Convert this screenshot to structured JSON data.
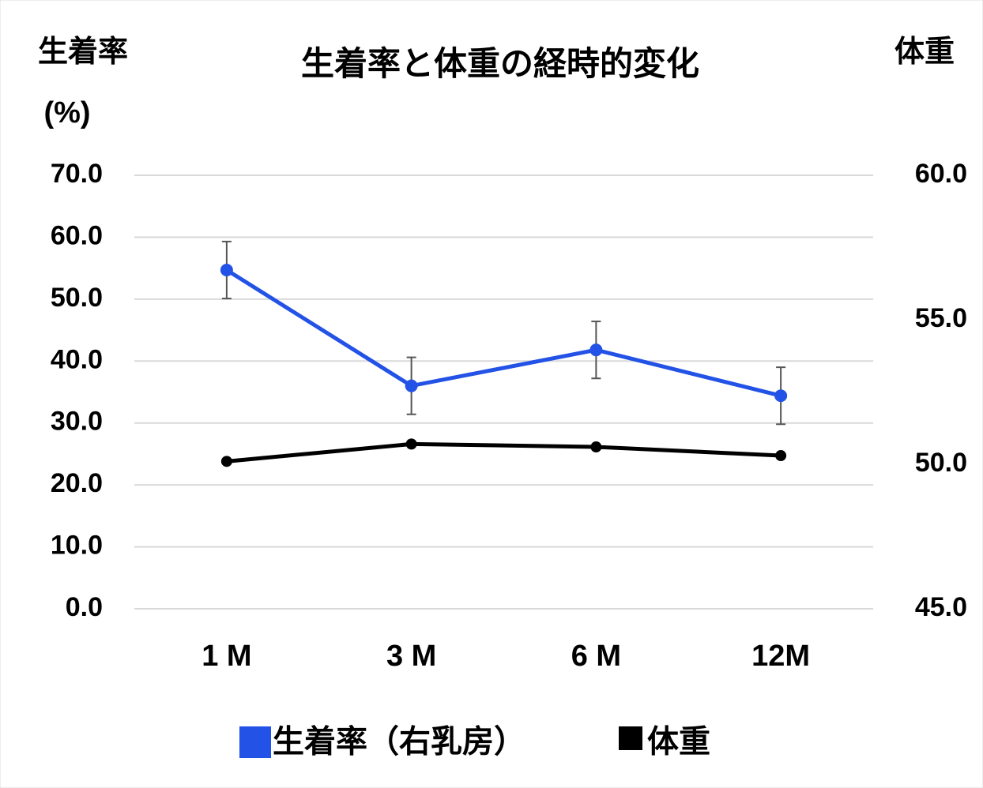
{
  "chart_data": {
    "type": "line",
    "title": "生着率と体重の経時的変化",
    "y_label": "生着率",
    "y_unit": "(%)",
    "y2_label": "体重",
    "categories": [
      "1 M",
      "3 M",
      "6 M",
      "12M"
    ],
    "series": [
      {
        "name": "生着率（右乳房）",
        "color": "#2352e6",
        "values": [
          54.7,
          36.0,
          41.8,
          34.4
        ],
        "errors": [
          4.6,
          4.6,
          4.6,
          4.6
        ]
      },
      {
        "name": "体重",
        "color": "#000000",
        "axis": "y2",
        "values": [
          50.1,
          50.7,
          50.6,
          50.3
        ]
      }
    ],
    "ylim": [
      0,
      70
    ],
    "yticks": [
      {
        "value": 0,
        "label": "0.0"
      },
      {
        "value": 10,
        "label": "10.0"
      },
      {
        "value": 20,
        "label": "20.0"
      },
      {
        "value": 30,
        "label": "30.0"
      },
      {
        "value": 40,
        "label": "40.0"
      },
      {
        "value": 50,
        "label": "50.0"
      },
      {
        "value": 60,
        "label": "60.0"
      },
      {
        "value": 70,
        "label": "70.0"
      }
    ],
    "y2lim": [
      45,
      60
    ],
    "y2ticks": [
      {
        "value": 45,
        "label": "45.0"
      },
      {
        "value": 50,
        "label": "50.0"
      },
      {
        "value": 55,
        "label": "55.0"
      },
      {
        "value": 60,
        "label": "60.0"
      }
    ],
    "grid": true
  }
}
